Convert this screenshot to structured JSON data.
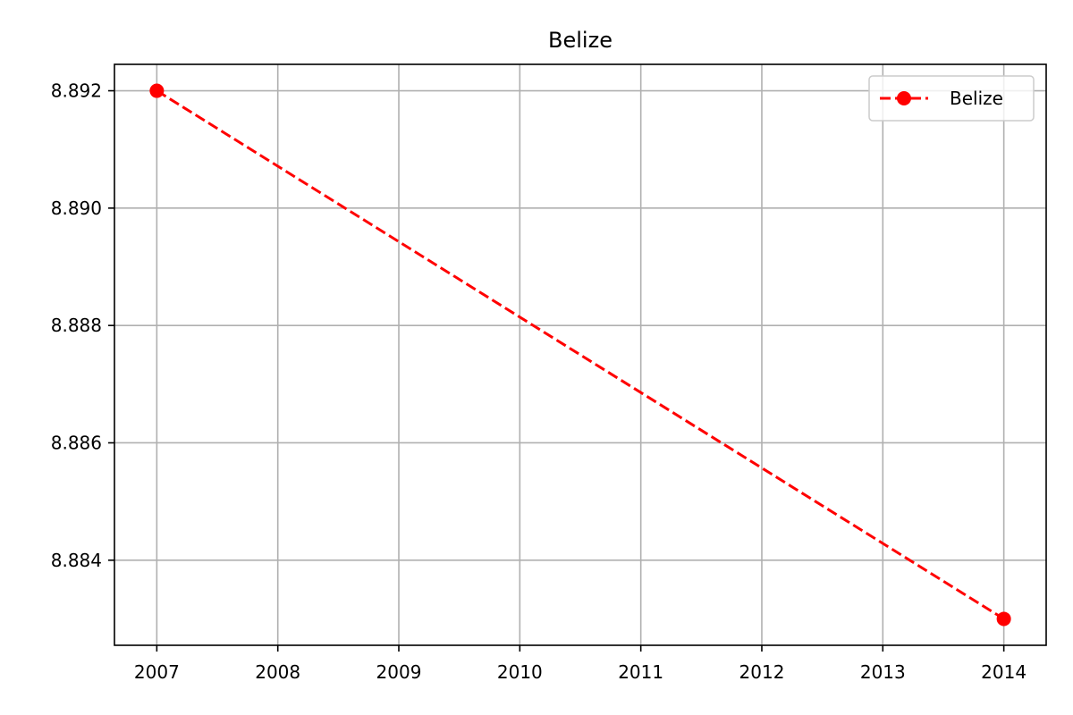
{
  "chart_data": {
    "type": "line",
    "title": "Belize",
    "xlabel": "",
    "ylabel": "",
    "x": [
      2007,
      2014
    ],
    "series": [
      {
        "name": "Belize",
        "values": [
          8.892,
          8.883
        ],
        "color": "#ff0000",
        "line_style": "dashed",
        "marker": "circle"
      }
    ],
    "xlim": [
      2006.65,
      2014.35
    ],
    "ylim": [
      8.88255,
      8.89245
    ],
    "xticks": [
      2007,
      2008,
      2009,
      2010,
      2011,
      2012,
      2013,
      2014
    ],
    "xtick_labels": [
      "2007",
      "2008",
      "2009",
      "2010",
      "2011",
      "2012",
      "2013",
      "2014"
    ],
    "yticks": [
      8.884,
      8.886,
      8.888,
      8.89,
      8.892
    ],
    "ytick_labels": [
      "8.884",
      "8.886",
      "8.888",
      "8.890",
      "8.892"
    ],
    "grid": true,
    "legend_position": "top-right"
  },
  "colors": {
    "grid": "#b0b0b0",
    "axes": "#000000",
    "legend_border": "#cccccc"
  }
}
